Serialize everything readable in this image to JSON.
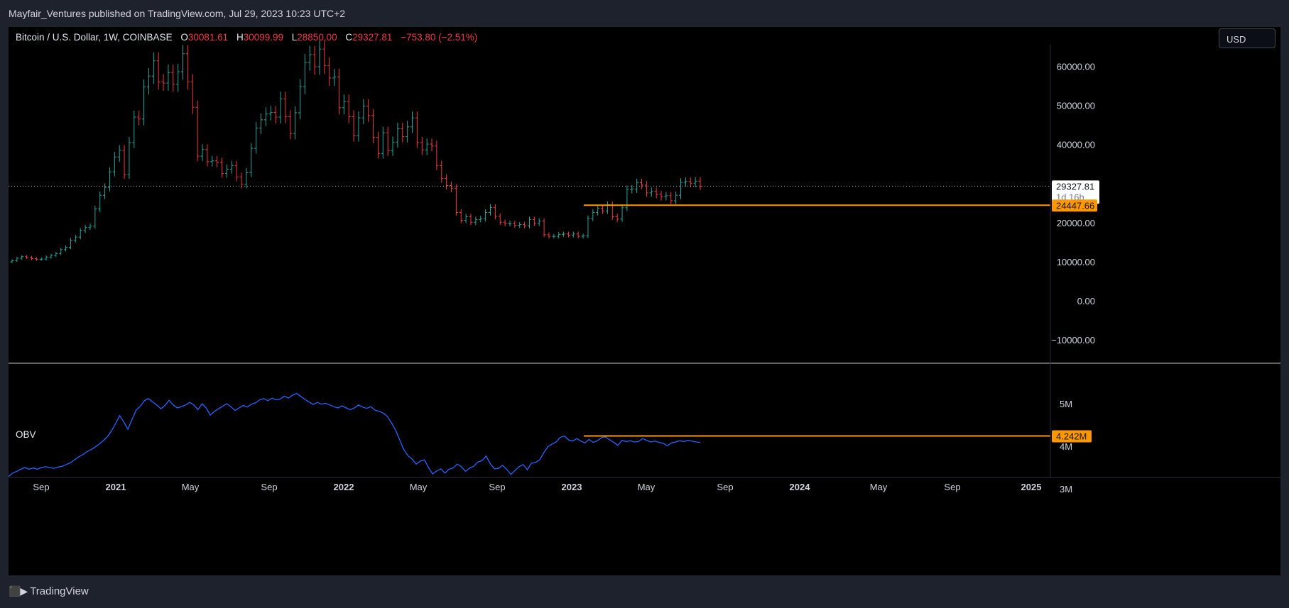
{
  "header": {
    "publisher_line": "Mayfair_Ventures published on TradingView.com, Jul 29, 2023 10:23 UTC+2"
  },
  "legend": {
    "symbol": "Bitcoin / U.S. Dollar, 1W, COINBASE",
    "open_key": "O",
    "open": "30081.61",
    "high_key": "H",
    "high": "30099.99",
    "low_key": "L",
    "low": "28850.00",
    "close_key": "C",
    "close": "29327.81",
    "change": "−753.80 (−2.51%)"
  },
  "currency_button": "USD",
  "obv_label": "OBV",
  "footer": {
    "brand": "TradingView"
  },
  "colors": {
    "up": "#26a69a",
    "down": "#f23645",
    "obv": "#2962ff",
    "level": "#ff9800",
    "background": "#000000"
  },
  "chart_data": [
    {
      "type": "candlestick",
      "title": "Bitcoin / U.S. Dollar, 1W, COINBASE",
      "price_ticks": [
        "60000.00",
        "50000.00",
        "40000.00",
        "30000.00",
        "20000.00",
        "10000.00",
        "0.00",
        "−10000.00"
      ],
      "ylim": [
        -12000,
        66000
      ],
      "x_ticks": [
        "Sep",
        "2021",
        "May",
        "Sep",
        "2022",
        "May",
        "Sep",
        "2023",
        "May",
        "Sep",
        "2024",
        "May",
        "Sep",
        "2025"
      ],
      "last_price": "29327.81",
      "countdown": "1d 16h",
      "horizontal_level": {
        "label": "24447.66",
        "value": 24447.66,
        "from": "2023-01"
      },
      "weekly_closes_approx": [
        10300,
        10900,
        11300,
        11100,
        10800,
        10600,
        10700,
        11200,
        11600,
        12100,
        13100,
        13700,
        15500,
        16300,
        18000,
        18800,
        19100,
        23500,
        27000,
        29000,
        33000,
        36800,
        38500,
        32300,
        40500,
        47000,
        46500,
        54700,
        57500,
        61400,
        56000,
        55700,
        58400,
        55400,
        58600,
        63200,
        56000,
        49500,
        37000,
        38700,
        35600,
        35800,
        35400,
        32600,
        33700,
        34600,
        31700,
        29800,
        32800,
        39000,
        44200,
        46300,
        47800,
        48200,
        47000,
        51700,
        47100,
        42800,
        48100,
        54800,
        61000,
        63000,
        59900,
        64400,
        60200,
        57000,
        57300,
        49400,
        51000,
        47100,
        42200,
        46800,
        49800,
        47400,
        41800,
        37700,
        43000,
        38400,
        40600,
        44000,
        42000,
        44500,
        46800,
        40500,
        38600,
        40100,
        39600,
        34600,
        31300,
        29500,
        28800,
        22600,
        20600,
        21500,
        20100,
        20800,
        21000,
        22600,
        23900,
        21600,
        20100,
        19700,
        19800,
        19300,
        19500,
        19200,
        20800,
        19800,
        20400,
        16900,
        16500,
        16500,
        17000,
        17100,
        16800,
        17100,
        16500,
        16600,
        21100,
        22600,
        23700,
        23000,
        24600,
        21500,
        20900,
        23800,
        28500,
        28600,
        30200,
        29600,
        27600,
        28000,
        27200,
        26600,
        26900,
        25600,
        27000,
        30300,
        30500,
        30100,
        30600,
        29327
      ]
    },
    {
      "type": "line",
      "title": "OBV",
      "y_ticks": [
        "5M",
        "4M",
        "3M"
      ],
      "ylim": [
        2.98,
        5.24
      ],
      "level": {
        "label": "4.242M",
        "value": 4.242
      },
      "values": [
        3.29,
        3.37,
        3.41,
        3.46,
        3.5,
        3.46,
        3.49,
        3.46,
        3.5,
        3.52,
        3.5,
        3.48,
        3.51,
        3.53,
        3.57,
        3.61,
        3.68,
        3.75,
        3.8,
        3.87,
        3.92,
        3.98,
        4.05,
        4.13,
        4.22,
        4.36,
        4.53,
        4.72,
        4.57,
        4.4,
        4.63,
        4.85,
        4.94,
        5.07,
        5.12,
        5.04,
        4.97,
        4.88,
        4.96,
        5.08,
        4.97,
        4.9,
        4.93,
        4.97,
        5.03,
        4.97,
        4.86,
        5.0,
        4.9,
        4.73,
        4.82,
        4.88,
        4.94,
        5.0,
        4.93,
        4.84,
        4.9,
        4.96,
        4.92,
        4.99,
        5.02,
        5.09,
        5.12,
        5.07,
        5.13,
        5.09,
        5.11,
        5.18,
        5.13,
        5.2,
        5.24,
        5.17,
        5.1,
        5.04,
        4.98,
        5.03,
        4.99,
        5.01,
        4.97,
        4.93,
        4.9,
        4.95,
        4.9,
        4.86,
        4.9,
        4.97,
        4.92,
        4.89,
        4.93,
        4.85,
        4.82,
        4.78,
        4.7,
        4.55,
        4.38,
        4.15,
        3.92,
        3.78,
        3.7,
        3.58,
        3.65,
        3.68,
        3.5,
        3.35,
        3.42,
        3.47,
        3.37,
        3.46,
        3.49,
        3.58,
        3.52,
        3.41,
        3.49,
        3.53,
        3.63,
        3.66,
        3.77,
        3.59,
        3.47,
        3.48,
        3.55,
        3.46,
        3.34,
        3.43,
        3.52,
        3.57,
        3.45,
        3.6,
        3.62,
        3.68,
        3.85,
        3.99,
        4.05,
        4.1,
        4.21,
        4.242,
        4.15,
        4.12,
        4.18,
        4.12,
        4.08,
        4.16,
        4.09,
        4.13,
        4.2,
        4.22,
        4.15,
        4.09,
        4.02,
        4.14,
        4.11,
        4.13,
        4.1,
        4.11,
        4.18,
        4.14,
        4.1,
        4.12,
        4.09,
        4.07,
        4.01,
        4.08,
        4.1,
        4.13,
        4.11,
        4.14,
        4.12,
        4.1,
        4.09
      ],
      "x_ticks": [
        "Sep",
        "2021",
        "May",
        "Sep",
        "2022",
        "May",
        "Sep",
        "2023",
        "May",
        "Sep",
        "2024",
        "May",
        "Sep",
        "2025"
      ]
    }
  ]
}
